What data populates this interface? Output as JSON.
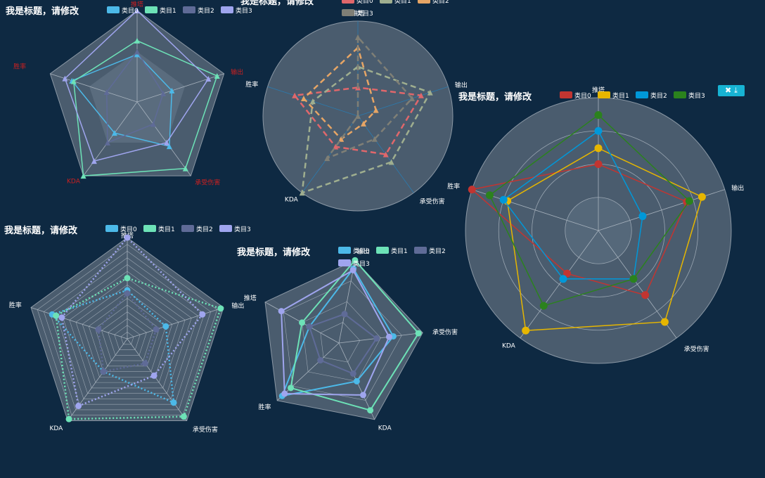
{
  "chart_data": [
    {
      "type": "radar",
      "title": "我是标题，请修改",
      "indicators": [
        "推塔",
        "胜率",
        "KDA",
        "承受伤害",
        "输出"
      ],
      "indicator_color": "#cc2020",
      "shape": "polygon",
      "legend": "top",
      "series": [
        {
          "name": "类目0",
          "color": "#4cb9e8",
          "values": [
            0.52,
            0.75,
            0.42,
            0.6,
            0.4
          ]
        },
        {
          "name": "类目1",
          "color": "#6de2b7",
          "values": [
            0.67,
            0.73,
            1.0,
            0.9,
            0.92
          ]
        },
        {
          "name": "类目2",
          "color": "#5f6b97",
          "values": [
            0.55,
            0.35,
            0.55,
            0.3,
            0.3
          ]
        },
        {
          "name": "类目3",
          "color": "#9fa5ee",
          "values": [
            1.0,
            0.83,
            0.8,
            0.55,
            0.82
          ]
        }
      ]
    },
    {
      "type": "radar",
      "title": "我是标题，请修改",
      "indicators": [
        "推塔",
        "胜率",
        "KDA",
        "承受伤害",
        "输出"
      ],
      "shape": "circle",
      "line_style": "dashed",
      "legend": "top",
      "series": [
        {
          "name": "类目0",
          "color": "#e0676b",
          "values": [
            0.3,
            0.7,
            0.4,
            0.5,
            0.7
          ]
        },
        {
          "name": "类目1",
          "color": "#9fae8f",
          "values": [
            0.52,
            0.5,
            1.0,
            0.6,
            0.8
          ]
        },
        {
          "name": "类目2",
          "color": "#e6a565",
          "values": [
            0.72,
            0.6,
            0.3,
            0.1,
            0.2
          ]
        },
        {
          "name": "类目3",
          "color": "#7f7f76",
          "values": [
            0.83,
            0.0,
            0.55,
            0.3,
            0.6
          ]
        }
      ]
    },
    {
      "type": "radar",
      "title": "我是标题，请修改",
      "indicators": [
        "推塔",
        "胜率",
        "KDA",
        "承受伤害",
        "输出"
      ],
      "shape": "circle",
      "legend": "top-right",
      "toolbox": [
        "close-icon",
        "download-icon"
      ],
      "series": [
        {
          "name": "类目0",
          "color": "#c23531",
          "values": [
            0.5,
            1.0,
            0.4,
            0.6,
            0.7
          ]
        },
        {
          "name": "类目1",
          "color": "#e6b600",
          "values": [
            0.62,
            0.72,
            0.93,
            0.85,
            0.82
          ]
        },
        {
          "name": "类目2",
          "color": "#0098d9",
          "values": [
            0.75,
            0.75,
            0.45,
            0.45,
            0.35
          ]
        },
        {
          "name": "类目3",
          "color": "#2b821d",
          "values": [
            0.87,
            0.86,
            0.7,
            0.45,
            0.72
          ]
        }
      ]
    },
    {
      "type": "radar",
      "title": "我是标题，请修改",
      "indicators": [
        "推塔",
        "胜率",
        "KDA",
        "承受伤害",
        "输出"
      ],
      "shape": "polygon",
      "line_style": "dotted",
      "split_number": 15,
      "legend": "top",
      "series": [
        {
          "name": "类目0",
          "color": "#4cb9e8",
          "values": [
            0.48,
            0.78,
            0.4,
            0.78,
            0.4
          ]
        },
        {
          "name": "类目1",
          "color": "#6de2b7",
          "values": [
            0.6,
            0.74,
            0.98,
            0.95,
            0.97
          ]
        },
        {
          "name": "类目2",
          "color": "#5f6b97",
          "values": [
            0.45,
            0.3,
            0.4,
            0.3,
            0.3
          ]
        },
        {
          "name": "类目3",
          "color": "#9fa5ee",
          "values": [
            1.0,
            0.68,
            0.82,
            0.45,
            0.78
          ]
        }
      ]
    },
    {
      "type": "radar",
      "title": "我是标题，请修改",
      "indicators": [
        "KDA",
        "承受伤害",
        "输出",
        "推塔",
        "胜率"
      ],
      "shape": "polygon",
      "legend": "top",
      "series": [
        {
          "name": "类目0",
          "color": "#4cb9e8",
          "values": [
            0.5,
            0.65,
            0.9,
            0.4,
            0.92
          ]
        },
        {
          "name": "类目1",
          "color": "#6de2b7",
          "values": [
            0.88,
            0.95,
            1.0,
            0.5,
            0.78
          ]
        },
        {
          "name": "类目2",
          "color": "#5f6b97",
          "values": [
            0.4,
            0.45,
            0.35,
            0.4,
            0.3
          ]
        },
        {
          "name": "类目3",
          "color": "#9fa5ee",
          "values": [
            0.68,
            0.6,
            0.88,
            0.78,
            0.88
          ]
        }
      ]
    }
  ],
  "toolbox": {
    "close_icon": "✖",
    "download_icon": "⤓"
  }
}
